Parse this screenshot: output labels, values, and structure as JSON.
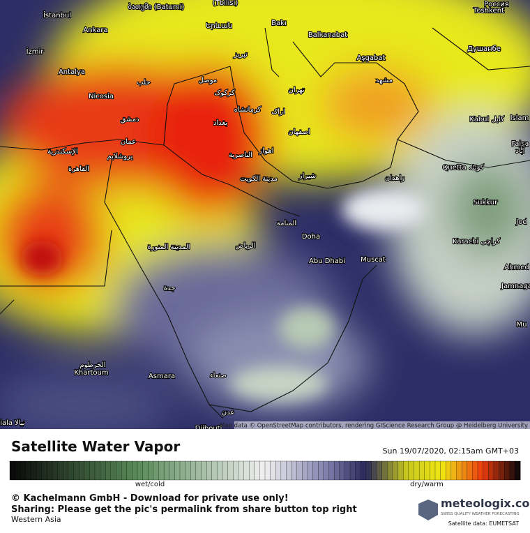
{
  "map": {
    "labels": [
      "İstanbul",
      "ბათუმი (Batumi)",
      "(Tbilisi)",
      "Россия",
      "Ankara",
      "Երևան",
      "Bakı",
      "Balkanabat",
      "Toshkent",
      "İzmir",
      "تبریز",
      "Aşgabat",
      "Душанбе",
      "Antalya",
      "حلب",
      "موصل",
      "مشهد",
      "Nicosia",
      "کرکوک",
      "تهران",
      "کرمانشاه",
      "اراک",
      "دمشق",
      "بغداد",
      "اصفهان",
      "Kabul کابل",
      "Islam",
      "Faisa",
      "آباد",
      "عمان",
      "الإسكندرية",
      "يروشلايم",
      "الناصرية",
      "اهواز",
      "Quetta کوئٹہ",
      "القاهرة",
      "شيراز",
      "مدينة الكويت",
      "زاهدان",
      "Sukkur",
      "Jod",
      "المنامة",
      "Doha",
      "Karachi کراچی",
      "المدينة المنورة",
      "الرياض",
      "Muscat",
      "Abu Dhabi",
      "Ahmed",
      "Jamnaga",
      "جدة",
      "Mu",
      "الخرطوم",
      "Khartoum",
      "Asmara",
      "صنعاء",
      "عدن",
      "Djibouti",
      "iala نيالا"
    ],
    "attribution": "Map data © OpenStreetMap contributors, rendering GIScience Research Group @ Heidelberg University"
  },
  "legend": {
    "title": "Satellite Water Vapor",
    "timestamp": "Sun 19/07/2020, 02:15am GMT+03",
    "low_label": "wet/cold",
    "high_label": "dry/warm"
  },
  "footer": {
    "copyright": "© Kachelmann GmbH - Download for private use only!",
    "sharing": "Sharing: Please get the pic's permalink from share button top right",
    "region": "Western Asia",
    "brand": "meteologix.com",
    "tagline": "SWISS QUALITY WEATHER FORECASTING",
    "source": "Satellite data: EUMETSAT"
  }
}
